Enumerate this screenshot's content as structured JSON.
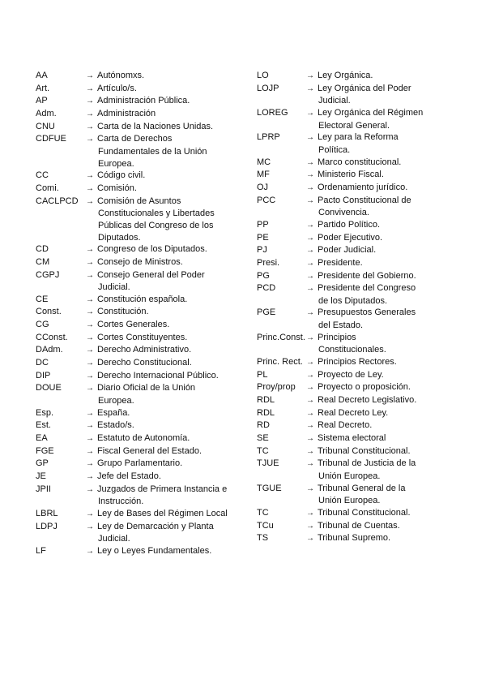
{
  "arrow": "→",
  "left": [
    {
      "abbr": "AA",
      "lines": [
        "Autónomxs."
      ]
    },
    {
      "abbr": "Art.",
      "lines": [
        "Artículo/s."
      ]
    },
    {
      "abbr": "AP",
      "lines": [
        "Administración Pública."
      ]
    },
    {
      "abbr": "Adm.",
      "lines": [
        "Administración"
      ]
    },
    {
      "abbr": "CNU",
      "lines": [
        "Carta de la Naciones Unidas."
      ]
    },
    {
      "abbr": "CDFUE",
      "lines": [
        "Carta de Derechos",
        "Fundamentales de la Unión",
        "Europea."
      ]
    },
    {
      "abbr": "CC",
      "lines": [
        "Código civil."
      ]
    },
    {
      "abbr": "Comi.",
      "lines": [
        "Comisión."
      ]
    },
    {
      "abbr": "CACLPCD",
      "lines": [
        "Comisión de Asuntos",
        "Constitucionales y Libertades",
        "Públicas del Congreso de los",
        "Diputados."
      ]
    },
    {
      "abbr": "CD",
      "lines": [
        "Congreso de los Diputados."
      ]
    },
    {
      "abbr": "CM",
      "lines": [
        "Consejo de Ministros."
      ]
    },
    {
      "abbr": "CGPJ",
      "lines": [
        "Consejo General del Poder",
        "Judicial."
      ]
    },
    {
      "abbr": "CE",
      "lines": [
        "Constitución española."
      ]
    },
    {
      "abbr": "Const.",
      "lines": [
        "Constitución."
      ]
    },
    {
      "abbr": "CG",
      "lines": [
        "Cortes Generales."
      ]
    },
    {
      "abbr": "CConst.",
      "lines": [
        "Cortes Constituyentes."
      ]
    },
    {
      "abbr": "DAdm.",
      "lines": [
        "Derecho Administrativo."
      ]
    },
    {
      "abbr": "DC",
      "lines": [
        "Derecho Constitucional."
      ]
    },
    {
      "abbr": "DIP",
      "lines": [
        "Derecho Internacional Público."
      ]
    },
    {
      "abbr": "DOUE",
      "lines": [
        "Diario Oficial de la Unión",
        "Europea."
      ]
    },
    {
      "abbr": "Esp.",
      "lines": [
        "España."
      ]
    },
    {
      "abbr": "Est.",
      "lines": [
        "Estado/s."
      ]
    },
    {
      "abbr": "EA",
      "lines": [
        "Estatuto de Autonomía."
      ]
    },
    {
      "abbr": "FGE",
      "lines": [
        "Fiscal General del Estado."
      ]
    },
    {
      "abbr": "GP",
      "lines": [
        "Grupo Parlamentario."
      ]
    },
    {
      "abbr": "JE",
      "lines": [
        "Jefe del Estado."
      ]
    },
    {
      "abbr": "JPII",
      "lines": [
        "Juzgados de Primera Instancia e",
        "Instrucción."
      ]
    },
    {
      "abbr": "LBRL",
      "lines": [
        "Ley de Bases del Régimen Local"
      ]
    },
    {
      "abbr": "LDPJ",
      "lines": [
        "Ley de Demarcación y Planta",
        "Judicial."
      ]
    },
    {
      "abbr": "LF",
      "lines": [
        "Ley o Leyes Fundamentales."
      ]
    }
  ],
  "right": [
    {
      "abbr": "LO",
      "lines": [
        "Ley Orgánica."
      ]
    },
    {
      "abbr": "LOJP",
      "lines": [
        "Ley Orgánica del Poder",
        "Judicial."
      ]
    },
    {
      "abbr": "LOREG",
      "lines": [
        "Ley Orgánica del Régimen",
        "Electoral General."
      ]
    },
    {
      "abbr": "LPRP",
      "lines": [
        "Ley para la Reforma",
        "Política."
      ]
    },
    {
      "abbr": "MC",
      "lines": [
        "Marco constitucional."
      ]
    },
    {
      "abbr": "MF",
      "lines": [
        "Ministerio Fiscal."
      ]
    },
    {
      "abbr": "OJ",
      "lines": [
        "Ordenamiento jurídico."
      ]
    },
    {
      "abbr": "PCC",
      "lines": [
        "Pacto Constitucional de",
        "Convivencia."
      ]
    },
    {
      "abbr": "PP",
      "lines": [
        "Partido Político."
      ]
    },
    {
      "abbr": "PE",
      "lines": [
        "Poder Ejecutivo."
      ]
    },
    {
      "abbr": "PJ",
      "lines": [
        "Poder Judicial."
      ]
    },
    {
      "abbr": "Presi.",
      "lines": [
        "Presidente."
      ]
    },
    {
      "abbr": "PG",
      "lines": [
        "Presidente del Gobierno."
      ]
    },
    {
      "abbr": "PCD",
      "lines": [
        "Presidente del Congreso",
        "de los Diputados."
      ]
    },
    {
      "abbr": "PGE",
      "lines": [
        "Presupuestos Generales",
        "del Estado."
      ]
    },
    {
      "abbr": "Princ.Const.",
      "lines": [
        "Principios",
        "Constitucionales."
      ]
    },
    {
      "abbr": "Princ. Rect.",
      "lines": [
        "Principios Rectores."
      ]
    },
    {
      "abbr": "PL",
      "lines": [
        "Proyecto de Ley."
      ]
    },
    {
      "abbr": "Proy/prop",
      "lines": [
        "Proyecto o proposición."
      ]
    },
    {
      "abbr": "RDL",
      "lines": [
        "Real Decreto Legislativo."
      ]
    },
    {
      "abbr": "RDL",
      "lines": [
        "Real Decreto Ley."
      ]
    },
    {
      "abbr": "RD",
      "lines": [
        "Real Decreto."
      ]
    },
    {
      "abbr": "SE",
      "lines": [
        "Sistema electoral"
      ]
    },
    {
      "abbr": "TC",
      "lines": [
        "Tribunal Constitucional."
      ]
    },
    {
      "abbr": "TJUE",
      "lines": [
        "Tribunal de Justicia de la",
        "Unión Europea."
      ]
    },
    {
      "abbr": "TGUE",
      "lines": [
        "Tribunal General de la",
        "Unión Europea."
      ]
    },
    {
      "abbr": "TC",
      "lines": [
        "Tribunal Constitucional."
      ]
    },
    {
      "abbr": "TCu",
      "lines": [
        "Tribunal de Cuentas."
      ]
    },
    {
      "abbr": "TS",
      "lines": [
        "Tribunal Supremo."
      ]
    }
  ]
}
